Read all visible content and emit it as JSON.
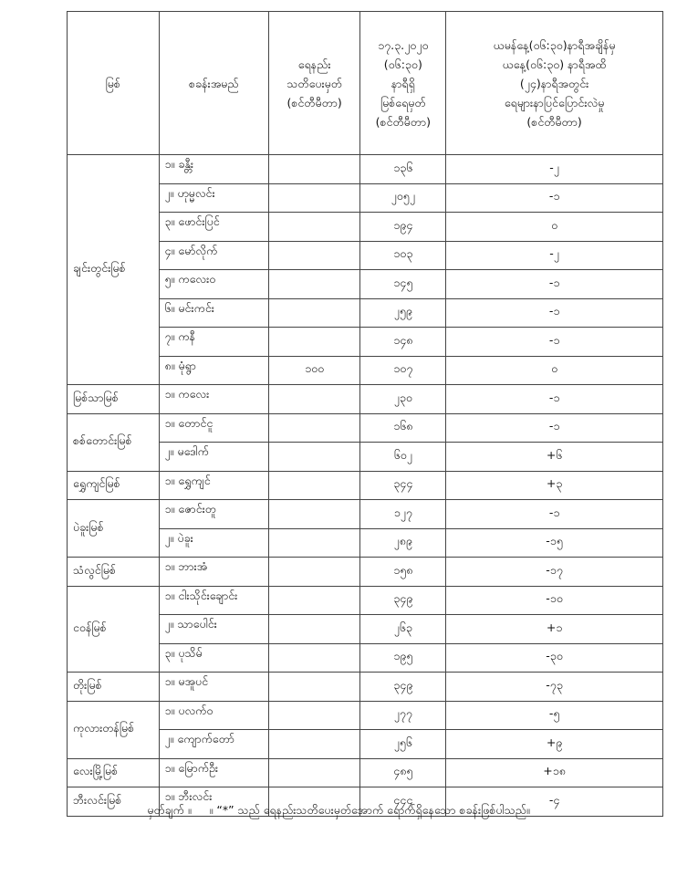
{
  "headers": {
    "river": "မြစ်",
    "station": "စခန်းအမည်",
    "danger": "ရေနည်း\nသတိပေးမှတ်\n(စင်တီမီတာ)",
    "level": "၁၇.၃.၂၀၂၀\n(၀၆:၃၀)\nနာရီရှိ\nမြစ်ရေမှတ်\n(စင်တီမီတာ)",
    "change": "ယမန်နေ့(၀၆:၃၀)နာရီအချိန်မှ\nယနေ့(၀၆:၃၀) နာရီအထိ\n(၂၄)နာရီအတွင်း\nရေများနာပြင်ပြောင်းလဲမှု\n(စင်တီမီတာ)"
  },
  "rivers": [
    {
      "name": "ချင်းတွင်းမြစ်",
      "stations": [
        {
          "name": "၁။ ခန္တီး",
          "danger": "",
          "level": "၁၃၆",
          "change": "-၂"
        },
        {
          "name": "၂။ ဟုမ္မလင်း",
          "danger": "",
          "level": "၂၀၅၂",
          "change": "-၁"
        },
        {
          "name": "၃။ ဖောင်းပြင်",
          "danger": "",
          "level": "၁၉၄",
          "change": "၀"
        },
        {
          "name": "၄။ မော်လိုက်",
          "danger": "",
          "level": "၁၀၃",
          "change": "-၂"
        },
        {
          "name": "၅။ ကလေးဝ",
          "danger": "",
          "level": "၁၄၅",
          "change": "-၁"
        },
        {
          "name": "၆။ မင်းကင်း",
          "danger": "",
          "level": "၂၅၉",
          "change": "-၁"
        },
        {
          "name": "၇။ ကနီ",
          "danger": "",
          "level": "၁၄၈",
          "change": "-၁"
        },
        {
          "name": "၈။ မုံရွာ",
          "danger": "၁၀၀",
          "level": "၁၀၇",
          "change": "၀"
        }
      ]
    },
    {
      "name": "မြစ်သာမြစ်",
      "stations": [
        {
          "name": "၁။ ကလေး",
          "danger": "",
          "level": "၂၃၀",
          "change": "-၁"
        }
      ]
    },
    {
      "name": "စစ်တောင်းမြစ်",
      "stations": [
        {
          "name": "၁။ တောင်ငူ",
          "danger": "",
          "level": "၁၆၈",
          "change": "-၁"
        },
        {
          "name": "၂။ မဒေါက်",
          "danger": "",
          "level": "၆၀၂",
          "change": "+၆"
        }
      ]
    },
    {
      "name": "ရွှေကျင်မြစ်",
      "stations": [
        {
          "name": "၁။ ရွှေကျင်",
          "danger": "",
          "level": "၃၄၄",
          "change": "+၃"
        }
      ]
    },
    {
      "name": "ပဲခူးမြစ်",
      "stations": [
        {
          "name": "၁။ ဇောင်းတူ",
          "danger": "",
          "level": "၁၂၇",
          "change": "-၁"
        },
        {
          "name": "၂။ ပဲခူး",
          "danger": "",
          "level": "၂၈၉",
          "change": "-၁၅"
        }
      ]
    },
    {
      "name": "သံလွင်မြစ်",
      "stations": [
        {
          "name": "၁။ ဘားအံ",
          "danger": "",
          "level": "၁၅၈",
          "change": "-၁၇"
        }
      ]
    },
    {
      "name": "ငဝန်မြစ်",
      "stations": [
        {
          "name": "၁။ ငါးသိုင်းချောင်း",
          "danger": "",
          "level": "၃၄၉",
          "change": "-၁၀"
        },
        {
          "name": "၂။ သာပေါင်း",
          "danger": "",
          "level": "၂၆၃",
          "change": "+၁"
        },
        {
          "name": "၃။ ပုသိမ်",
          "danger": "",
          "level": "၁၉၅",
          "change": "-၃၀"
        }
      ]
    },
    {
      "name": "တိုးမြစ်",
      "stations": [
        {
          "name": "၁။ မအူပင်",
          "danger": "",
          "level": "၃၄၉",
          "change": "-၇၃"
        }
      ]
    },
    {
      "name": "ကုလားတန်မြစ်",
      "stations": [
        {
          "name": "၁။ ပလက်ဝ",
          "danger": "",
          "level": "၂၇၇",
          "change": "-၅"
        },
        {
          "name": "၂။ ကျောက်တော်",
          "danger": "",
          "level": "၂၅၆",
          "change": "+၉"
        }
      ]
    },
    {
      "name": "လေးမြို့မြစ်",
      "stations": [
        {
          "name": "၁။ မြောက်ဦး",
          "danger": "",
          "level": "၄၈၅",
          "change": "+၁၈"
        }
      ]
    },
    {
      "name": "ဘီးလင်းမြစ်",
      "stations": [
        {
          "name": "၁။ ဘီးလင်း",
          "danger": "",
          "level": "၄၄၄",
          "change": "-၄"
        }
      ]
    }
  ],
  "footer": {
    "label": "မှတ်ချက် ။",
    "note": "။ “*” သည် ရေနည်းသတိပေးမှတ်အောက် ရောက်ရှိနေသော စခန်းဖြစ်ပါသည်။"
  }
}
